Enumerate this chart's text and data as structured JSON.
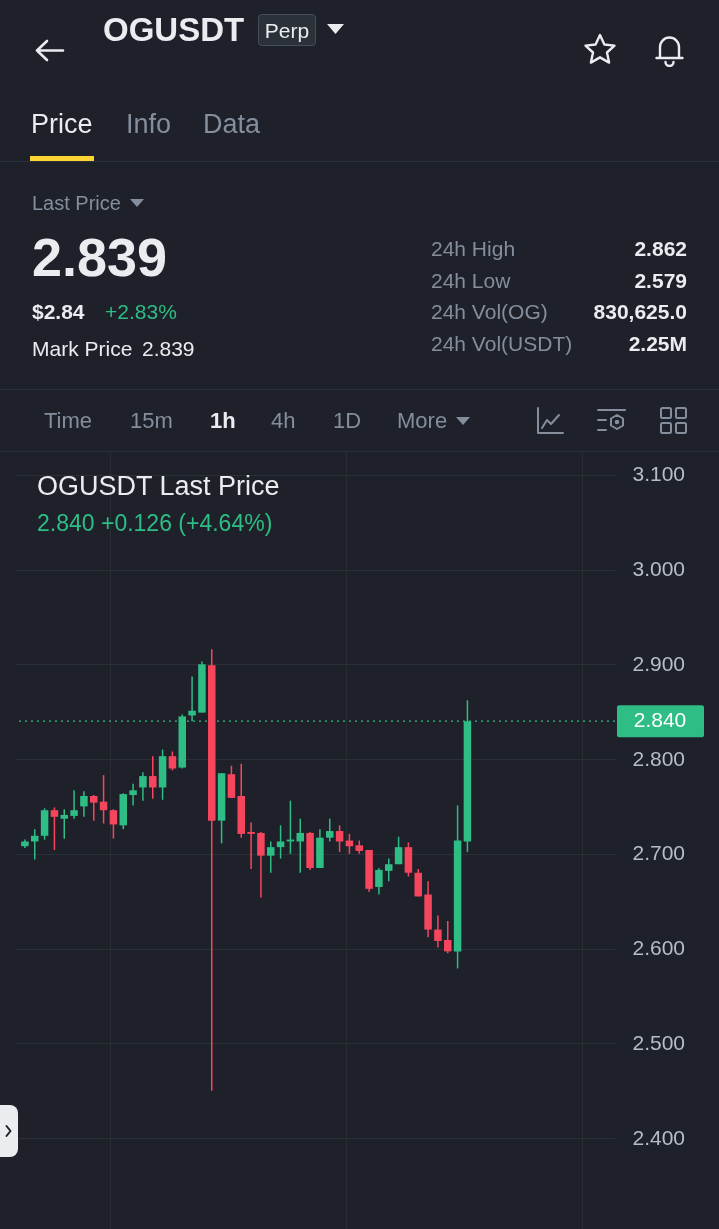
{
  "chart_data": [
    {
      "type": "other",
      "title": "OGUSDT",
      "annotations": [
        "Perp",
        "Price",
        "Info",
        "Data",
        "Last Price",
        "2.839",
        "$2.84",
        "+2.83%",
        "Mark Price",
        "2.839",
        "24h High",
        "2.862",
        "24h Low",
        "2.579",
        "24h Vol(OG)",
        "830,625.0",
        "24h Vol(USDT)",
        "2.25M",
        "Time",
        "15m",
        "1h",
        "4h",
        "1D",
        "More"
      ]
    },
    {
      "type": "candlestick",
      "title": "OGUSDT Last Price",
      "subtitle": "2.840 +0.126 (+4.64%)",
      "categories": [
        null,
        null,
        null,
        null,
        null,
        null,
        null,
        null,
        null,
        null,
        null,
        null,
        null,
        null,
        null,
        null,
        null,
        null,
        null,
        null,
        null,
        null,
        null,
        null,
        null,
        null,
        null,
        null,
        null,
        null,
        null,
        null,
        null,
        null,
        null,
        null,
        null,
        null,
        null,
        null,
        null,
        null,
        null,
        null,
        null,
        null,
        null,
        null,
        null,
        null,
        null,
        null,
        null,
        null,
        null,
        null,
        null,
        null,
        null,
        null
      ],
      "ohlc": [
        [
          2.708,
          2.715,
          2.706,
          2.713
        ],
        [
          2.713,
          2.726,
          2.694,
          2.719
        ],
        [
          2.719,
          2.748,
          2.715,
          2.746
        ],
        [
          2.746,
          2.749,
          2.704,
          2.739
        ],
        [
          2.737,
          2.747,
          2.716,
          2.741
        ],
        [
          2.74,
          2.767,
          2.737,
          2.746
        ],
        [
          2.75,
          2.766,
          2.739,
          2.761
        ],
        [
          2.761,
          2.762,
          2.735,
          2.754
        ],
        [
          2.755,
          2.783,
          2.732,
          2.746
        ],
        [
          2.746,
          2.747,
          2.716,
          2.731
        ],
        [
          2.73,
          2.764,
          2.726,
          2.763
        ],
        [
          2.762,
          2.774,
          2.751,
          2.767
        ],
        [
          2.77,
          2.786,
          2.756,
          2.782
        ],
        [
          2.782,
          2.803,
          2.758,
          2.77
        ],
        [
          2.77,
          2.81,
          2.757,
          2.803
        ],
        [
          2.803,
          2.808,
          2.788,
          2.79
        ],
        [
          2.791,
          2.847,
          2.79,
          2.845
        ],
        [
          2.846,
          2.887,
          2.84,
          2.851
        ],
        [
          2.849,
          2.903,
          2.849,
          2.9
        ],
        [
          2.899,
          2.916,
          2.45,
          2.735
        ],
        [
          2.735,
          2.785,
          2.711,
          2.785
        ],
        [
          2.784,
          2.793,
          2.759,
          2.759
        ],
        [
          2.761,
          2.795,
          2.717,
          2.721
        ],
        [
          2.723,
          2.733,
          2.684,
          2.721
        ],
        [
          2.722,
          2.723,
          2.654,
          2.698
        ],
        [
          2.698,
          2.713,
          2.68,
          2.707
        ],
        [
          2.707,
          2.73,
          2.695,
          2.713
        ],
        [
          2.713,
          2.756,
          2.7,
          2.715
        ],
        [
          2.713,
          2.737,
          2.68,
          2.722
        ],
        [
          2.722,
          2.723,
          2.683,
          2.685
        ],
        [
          2.685,
          2.726,
          2.685,
          2.717
        ],
        [
          2.717,
          2.737,
          2.713,
          2.724
        ],
        [
          2.724,
          2.73,
          2.702,
          2.713
        ],
        [
          2.714,
          2.721,
          2.7,
          2.708
        ],
        [
          2.709,
          2.714,
          2.7,
          2.703
        ],
        [
          2.704,
          2.704,
          2.66,
          2.663
        ],
        [
          2.665,
          2.685,
          2.657,
          2.683
        ],
        [
          2.682,
          2.695,
          2.671,
          2.689
        ],
        [
          2.689,
          2.718,
          2.689,
          2.707
        ],
        [
          2.707,
          2.712,
          2.676,
          2.68
        ],
        [
          2.68,
          2.684,
          2.655,
          2.655
        ],
        [
          2.657,
          2.671,
          2.612,
          2.62
        ],
        [
          2.62,
          2.635,
          2.601,
          2.608
        ],
        [
          2.609,
          2.629,
          2.595,
          2.597
        ],
        [
          2.597,
          2.751,
          2.579,
          2.714
        ],
        [
          2.713,
          2.862,
          2.702,
          2.84
        ],
        null,
        null,
        null,
        null,
        null,
        null,
        null,
        null,
        null,
        null,
        null,
        null,
        null,
        null
      ],
      "colors": [
        "#2ebd85",
        "#2ebd85",
        "#2ebd85",
        "#f6465d",
        "#2ebd85",
        "#2ebd85",
        "#2ebd85",
        "#f6465d",
        "#f6465d",
        "#f6465d",
        "#2ebd85",
        "#2ebd85",
        "#2ebd85",
        "#f6465d",
        "#2ebd85",
        "#f6465d",
        "#2ebd85",
        "#2ebd85",
        "#2ebd85",
        "#f6465d",
        "#2ebd85",
        "#f6465d",
        "#f6465d",
        "#f6465d",
        "#f6465d",
        "#2ebd85",
        "#2ebd85",
        "#2ebd85",
        "#2ebd85",
        "#f6465d",
        "#2ebd85",
        "#2ebd85",
        "#f6465d",
        "#f6465d",
        "#f6465d",
        "#f6465d",
        "#2ebd85",
        "#2ebd85",
        "#2ebd85",
        "#f6465d",
        "#f6465d",
        "#f6465d",
        "#f6465d",
        "#f6465d",
        "#2ebd85",
        "#2ebd85",
        null,
        null,
        null,
        null,
        null,
        null,
        null,
        null,
        null,
        null,
        null,
        null,
        null,
        null
      ],
      "ylim": [
        2.304,
        3.123
      ],
      "yticks": [
        {
          "value": 2.4,
          "label": "2.400"
        },
        {
          "value": 2.5,
          "label": "2.500"
        },
        {
          "value": 2.6,
          "label": "2.600"
        },
        {
          "value": 2.7,
          "label": "2.700"
        },
        {
          "value": 2.8,
          "label": "2.800"
        },
        {
          "value": 2.9,
          "label": "2.900"
        },
        {
          "value": 3.0,
          "label": "3.000"
        },
        {
          "value": 3.1,
          "label": "3.100"
        }
      ],
      "grid": true,
      "ref_lines": [
        {
          "axis": "y",
          "value": 2.84,
          "label": "2.840",
          "color": "#2ebd85",
          "line_style": "dotted"
        }
      ]
    }
  ]
}
